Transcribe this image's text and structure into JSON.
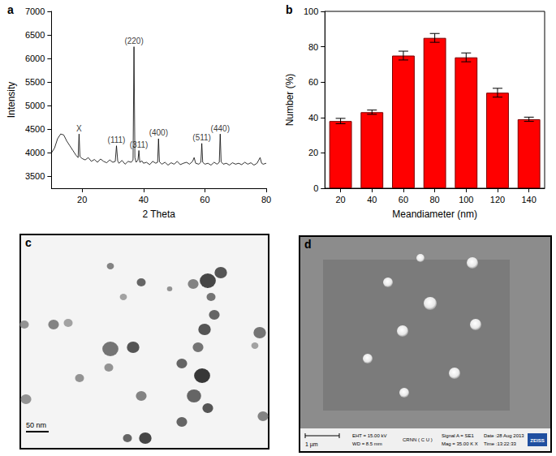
{
  "chart_data": [
    {
      "type": "line",
      "title": "a",
      "x_label": "2 Theta",
      "y_label": "Intensity",
      "x": [
        10,
        11,
        12,
        13,
        14,
        15,
        16,
        17,
        18,
        18.7,
        19,
        19.3,
        20,
        21,
        22,
        23,
        24,
        25,
        26,
        27,
        28,
        29,
        30,
        30.8,
        31.2,
        31.6,
        32,
        33,
        34,
        35,
        36,
        36.6,
        36.9,
        37.2,
        37.6,
        38.2,
        38.5,
        38.8,
        39.5,
        40,
        41,
        42,
        43,
        44,
        44.6,
        44.9,
        45.2,
        46,
        47,
        48,
        49,
        50,
        51,
        52,
        53,
        54,
        55,
        56,
        56.5,
        57,
        58,
        58.7,
        59,
        59.3,
        60,
        61,
        62,
        63,
        64,
        64.7,
        65,
        65.3,
        66,
        67,
        68,
        69,
        70,
        71,
        72,
        73,
        74,
        75,
        76,
        77,
        78,
        78.5,
        79,
        80
      ],
      "values": [
        4000,
        4100,
        4300,
        4400,
        4380,
        4250,
        4150,
        4050,
        3950,
        3900,
        4400,
        3920,
        3880,
        3850,
        3900,
        3820,
        3860,
        3800,
        3870,
        3820,
        3790,
        3850,
        3800,
        3820,
        4150,
        3830,
        3780,
        3840,
        3760,
        3820,
        3800,
        3850,
        6250,
        3900,
        3800,
        3850,
        4050,
        3800,
        3830,
        3780,
        3800,
        3750,
        3820,
        3780,
        3800,
        4300,
        3810,
        3760,
        3800,
        3740,
        3790,
        3760,
        3820,
        3750,
        3780,
        3800,
        3760,
        3820,
        3900,
        3780,
        3760,
        3800,
        4200,
        3800,
        3760,
        3780,
        3740,
        3800,
        3760,
        3800,
        4400,
        3810,
        3760,
        3780,
        3740,
        3790,
        3760,
        3780,
        3750,
        3800,
        3760,
        3790,
        3740,
        3780,
        3900,
        3780,
        3760,
        3780
      ],
      "color": "#000000",
      "xlim": [
        10,
        80
      ],
      "xticks": [
        20,
        40,
        60,
        80
      ],
      "ylim": [
        3250,
        7000
      ],
      "yticks": [
        3500,
        4000,
        4500,
        5000,
        5500,
        6000,
        6500,
        7000
      ],
      "grid": false,
      "annotations": [
        {
          "text": "X",
          "x": 19
        },
        {
          "text": "(111)",
          "x": 31.2
        },
        {
          "text": "(220)",
          "x": 36.9
        },
        {
          "text": "(311)",
          "x": 38.5
        },
        {
          "text": "(400)",
          "x": 44.9
        },
        {
          "text": "(511)",
          "x": 59
        },
        {
          "text": "(440)",
          "x": 65
        }
      ]
    },
    {
      "type": "bar",
      "title": "b",
      "x_label": "Meandiameter (nm)",
      "y_label": "Number (%)",
      "categories": [
        "20",
        "40",
        "60",
        "80",
        "100",
        "120",
        "140"
      ],
      "values": [
        38,
        43,
        75,
        85,
        74,
        54,
        39
      ],
      "errors": [
        1.5,
        1.2,
        2.5,
        2.5,
        2.5,
        2.5,
        1.2
      ],
      "color": "#ff0000",
      "ylim": [
        0,
        100
      ],
      "yticks": [
        0,
        20,
        40,
        60,
        80,
        100
      ],
      "grid": false
    }
  ],
  "panels": [
    {
      "label": "c",
      "scale_bar": "50 nm"
    },
    {
      "label": "d",
      "scale_bar": "1 µm",
      "info": [
        [
          "EHT = 15.00 kV",
          "WD = 8.5 mm"
        ],
        [
          "CRNN ( C U )"
        ],
        [
          "Signal A = SE1",
          "Mag = 35.00 K X"
        ],
        [
          "Date :28 Aug 2013",
          "Time :13:22:33"
        ]
      ],
      "logo": "ZEISS"
    }
  ]
}
